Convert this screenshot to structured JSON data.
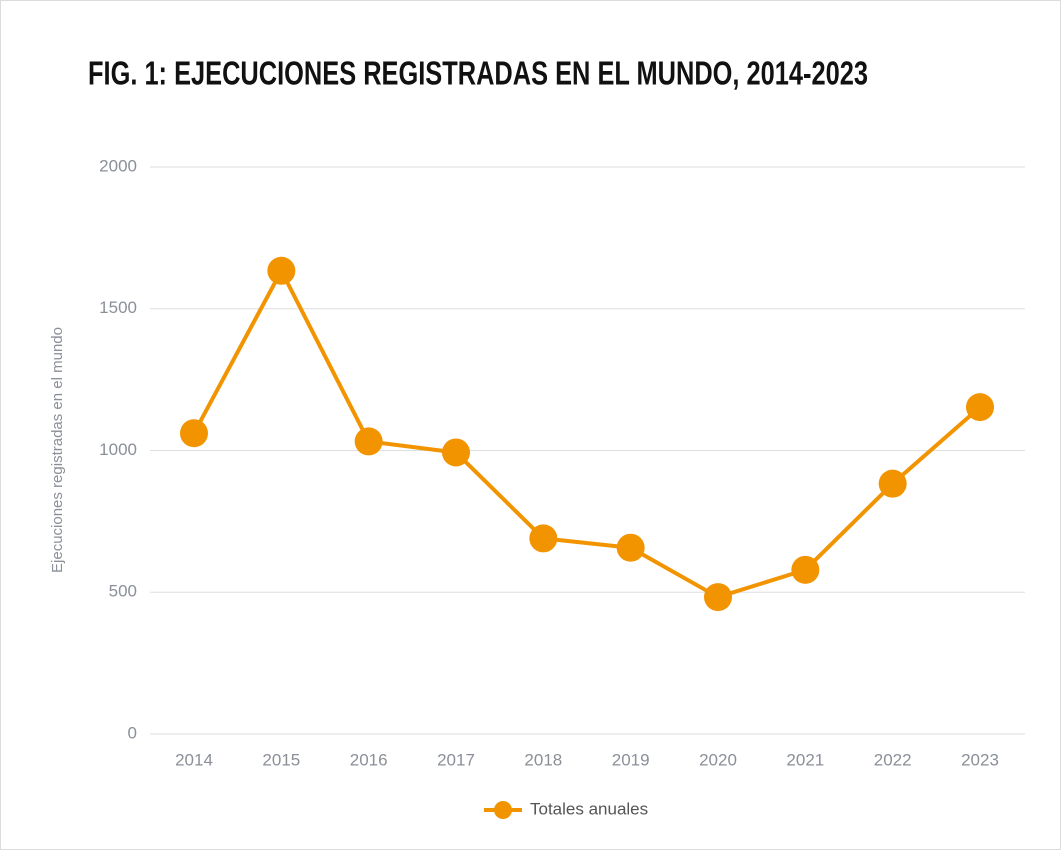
{
  "chart_data": {
    "type": "line",
    "title": "FIG. 1: EJECUCIONES REGISTRADAS EN EL MUNDO, 2014-2023",
    "y_label": "Ejecuciones registradas en el mundo",
    "categories": [
      "2014",
      "2015",
      "2016",
      "2017",
      "2018",
      "2019",
      "2020",
      "2021",
      "2022",
      "2023"
    ],
    "series": [
      {
        "name": "Totales anuales",
        "color": "#f29400",
        "values": [
          1061,
          1634,
          1032,
          993,
          690,
          657,
          483,
          579,
          883,
          1153
        ]
      }
    ],
    "ylim": [
      0,
      2000
    ],
    "yticks": [
      0,
      500,
      1000,
      1500,
      2000
    ],
    "grid": true,
    "legend": "bottom"
  }
}
